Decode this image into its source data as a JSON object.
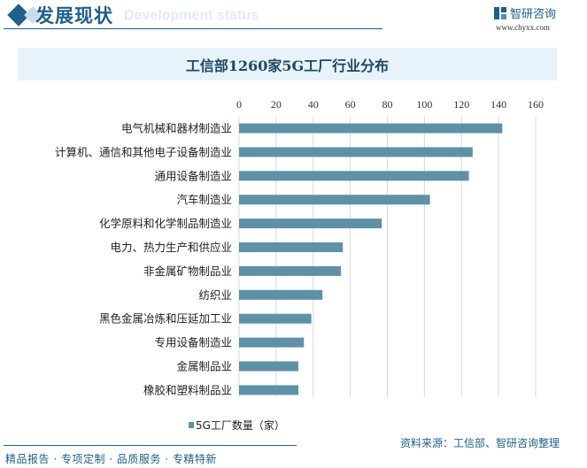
{
  "header": {
    "section_title": "发展现状",
    "section_subtitle": "Development status",
    "brand": "智研咨询",
    "url": "www.chyxx.com"
  },
  "chart_data": {
    "type": "bar",
    "orientation": "horizontal",
    "title": "工信部1260家5G工厂行业分布",
    "categories": [
      "电气机械和器材制造业",
      "计算机、通信和其他电子设备制造业",
      "通用设备制造业",
      "汽车制造业",
      "化学原料和化学制品制造业",
      "电力、热力生产和供应业",
      "非金属矿物制品业",
      "纺织业",
      "黑色金属冶炼和压延加工业",
      "专用设备制造业",
      "金属制品业",
      "橡胶和塑料制品业"
    ],
    "series": [
      {
        "name": "5G工厂数量（家）",
        "values": [
          142,
          126,
          124,
          103,
          77,
          56,
          55,
          45,
          39,
          35,
          32,
          32
        ]
      }
    ],
    "xlim": [
      0,
      160
    ],
    "xticks": [
      "0",
      "20",
      "40",
      "60",
      "80",
      "100",
      "120",
      "140",
      "160"
    ],
    "grid": true,
    "legend": "bottom",
    "bar_color": "#5e91a8"
  },
  "footer": {
    "source": "资料来源：工信部、智研咨询整理",
    "slogan": "精品报告 · 专项定制 · 品质服务 · 专精特新"
  }
}
